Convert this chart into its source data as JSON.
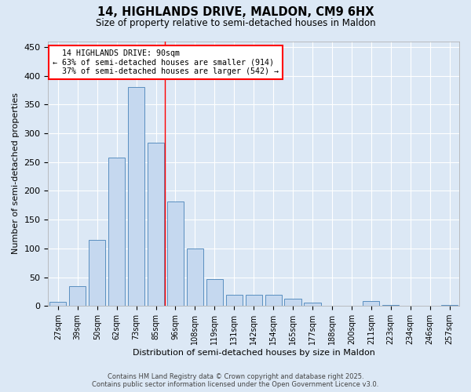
{
  "title": "14, HIGHLANDS DRIVE, MALDON, CM9 6HX",
  "subtitle": "Size of property relative to semi-detached houses in Maldon",
  "xlabel": "Distribution of semi-detached houses by size in Maldon",
  "ylabel": "Number of semi-detached properties",
  "bar_labels": [
    "27sqm",
    "39sqm",
    "50sqm",
    "62sqm",
    "73sqm",
    "85sqm",
    "96sqm",
    "108sqm",
    "119sqm",
    "131sqm",
    "142sqm",
    "154sqm",
    "165sqm",
    "177sqm",
    "188sqm",
    "200sqm",
    "211sqm",
    "223sqm",
    "234sqm",
    "246sqm",
    "257sqm"
  ],
  "bar_values": [
    7,
    35,
    115,
    258,
    380,
    283,
    182,
    100,
    47,
    20,
    20,
    20,
    12,
    6,
    0,
    0,
    8,
    2,
    0,
    0,
    2
  ],
  "bar_color": "#c5d8ef",
  "bar_edge_color": "#5a8fc0",
  "background_color": "#dce8f5",
  "grid_color": "#ffffff",
  "property_label": "14 HIGHLANDS DRIVE: 90sqm",
  "pct_smaller": 63,
  "count_smaller": 914,
  "pct_larger": 37,
  "count_larger": 542,
  "ylim": [
    0,
    460
  ],
  "yticks": [
    0,
    50,
    100,
    150,
    200,
    250,
    300,
    350,
    400,
    450
  ],
  "footer_line1": "Contains HM Land Registry data © Crown copyright and database right 2025.",
  "footer_line2": "Contains public sector information licensed under the Open Government Licence v3.0."
}
